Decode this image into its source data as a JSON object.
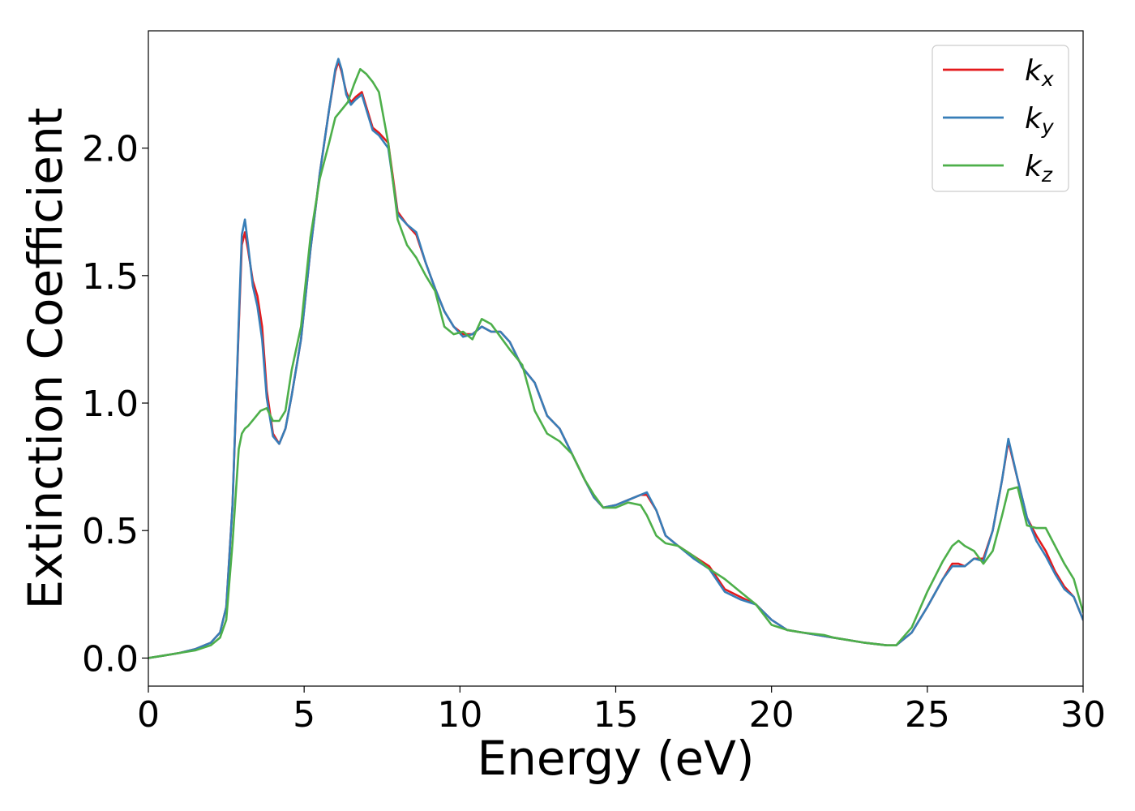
{
  "chart_data": {
    "type": "line",
    "title": "",
    "xlabel": "Energy (eV)",
    "ylabel": "Extinction Coefficient",
    "xlim": [
      0,
      30
    ],
    "ylim": [
      -0.11,
      2.46
    ],
    "xticks": [
      0,
      5,
      10,
      15,
      20,
      25,
      30
    ],
    "xtick_labels": [
      "0",
      "5",
      "10",
      "15",
      "20",
      "25",
      "30"
    ],
    "yticks": [
      0.0,
      0.5,
      1.0,
      1.5,
      2.0
    ],
    "ytick_labels": [
      "0.0",
      "0.5",
      "1.0",
      "1.5",
      "2.0"
    ],
    "grid": false,
    "legend_position": "top-right",
    "series": [
      {
        "name": "k_x",
        "legend_main": "k",
        "legend_sub": "x",
        "color": "#e41a1c",
        "x": [
          0,
          0.5,
          1.0,
          1.5,
          2.0,
          2.3,
          2.5,
          2.7,
          2.9,
          3.0,
          3.1,
          3.2,
          3.35,
          3.5,
          3.65,
          3.8,
          4.0,
          4.2,
          4.4,
          4.6,
          4.9,
          5.2,
          5.5,
          5.8,
          6.0,
          6.1,
          6.2,
          6.35,
          6.5,
          6.65,
          6.85,
          7.0,
          7.2,
          7.4,
          7.7,
          8.0,
          8.3,
          8.6,
          8.9,
          9.2,
          9.5,
          9.8,
          10.1,
          10.4,
          10.7,
          11.0,
          11.3,
          11.6,
          12.0,
          12.4,
          12.8,
          13.2,
          13.6,
          14.0,
          14.3,
          14.6,
          15.0,
          15.4,
          15.8,
          16.0,
          16.3,
          16.6,
          17.0,
          17.5,
          18.0,
          18.5,
          19.0,
          19.5,
          20.0,
          20.5,
          21.0,
          22.0,
          23.0,
          23.7,
          24.0,
          24.5,
          25.0,
          25.5,
          25.8,
          26.0,
          26.2,
          26.5,
          26.8,
          27.1,
          27.4,
          27.6,
          27.9,
          28.2,
          28.5,
          28.8,
          29.1,
          29.4,
          29.7,
          30.0
        ],
        "y": [
          0.0,
          0.01,
          0.02,
          0.035,
          0.06,
          0.1,
          0.2,
          0.6,
          1.3,
          1.62,
          1.67,
          1.6,
          1.48,
          1.42,
          1.3,
          1.05,
          0.88,
          0.84,
          0.9,
          1.03,
          1.25,
          1.6,
          1.9,
          2.15,
          2.3,
          2.34,
          2.3,
          2.22,
          2.18,
          2.2,
          2.22,
          2.16,
          2.08,
          2.06,
          2.02,
          1.75,
          1.7,
          1.66,
          1.55,
          1.45,
          1.36,
          1.3,
          1.27,
          1.27,
          1.3,
          1.28,
          1.28,
          1.24,
          1.14,
          1.08,
          0.95,
          0.9,
          0.8,
          0.7,
          0.63,
          0.59,
          0.6,
          0.62,
          0.64,
          0.64,
          0.58,
          0.48,
          0.44,
          0.4,
          0.36,
          0.27,
          0.24,
          0.21,
          0.15,
          0.11,
          0.1,
          0.08,
          0.06,
          0.05,
          0.05,
          0.1,
          0.2,
          0.31,
          0.37,
          0.37,
          0.36,
          0.39,
          0.39,
          0.5,
          0.7,
          0.85,
          0.7,
          0.55,
          0.48,
          0.42,
          0.34,
          0.28,
          0.24,
          0.15
        ]
      },
      {
        "name": "k_y",
        "legend_main": "k",
        "legend_sub": "y",
        "color": "#377eb8",
        "x": [
          0,
          0.5,
          1.0,
          1.5,
          2.0,
          2.3,
          2.5,
          2.7,
          2.9,
          3.0,
          3.1,
          3.2,
          3.35,
          3.5,
          3.65,
          3.8,
          4.0,
          4.2,
          4.4,
          4.6,
          4.9,
          5.2,
          5.5,
          5.8,
          6.0,
          6.1,
          6.2,
          6.35,
          6.5,
          6.65,
          6.85,
          7.0,
          7.2,
          7.4,
          7.7,
          8.0,
          8.3,
          8.6,
          8.9,
          9.2,
          9.5,
          9.8,
          10.1,
          10.4,
          10.7,
          11.0,
          11.3,
          11.6,
          12.0,
          12.4,
          12.8,
          13.2,
          13.6,
          14.0,
          14.3,
          14.6,
          15.0,
          15.4,
          15.8,
          16.0,
          16.3,
          16.6,
          17.0,
          17.5,
          18.0,
          18.5,
          19.0,
          19.5,
          20.0,
          20.5,
          21.0,
          22.0,
          23.0,
          23.7,
          24.0,
          24.5,
          25.0,
          25.5,
          25.8,
          26.0,
          26.2,
          26.5,
          26.8,
          27.1,
          27.4,
          27.6,
          27.9,
          28.2,
          28.5,
          28.8,
          29.1,
          29.4,
          29.7,
          30.0
        ],
        "y": [
          0.0,
          0.01,
          0.02,
          0.035,
          0.06,
          0.1,
          0.2,
          0.6,
          1.32,
          1.66,
          1.72,
          1.62,
          1.46,
          1.38,
          1.25,
          1.02,
          0.87,
          0.84,
          0.9,
          1.03,
          1.25,
          1.6,
          1.9,
          2.15,
          2.31,
          2.35,
          2.31,
          2.21,
          2.17,
          2.19,
          2.21,
          2.15,
          2.07,
          2.05,
          2.0,
          1.74,
          1.7,
          1.67,
          1.55,
          1.45,
          1.36,
          1.3,
          1.26,
          1.27,
          1.3,
          1.28,
          1.28,
          1.24,
          1.14,
          1.08,
          0.95,
          0.9,
          0.8,
          0.7,
          0.63,
          0.59,
          0.6,
          0.62,
          0.64,
          0.65,
          0.58,
          0.48,
          0.44,
          0.39,
          0.35,
          0.26,
          0.23,
          0.21,
          0.15,
          0.11,
          0.1,
          0.08,
          0.06,
          0.05,
          0.05,
          0.1,
          0.2,
          0.31,
          0.36,
          0.36,
          0.36,
          0.39,
          0.38,
          0.5,
          0.7,
          0.86,
          0.7,
          0.55,
          0.46,
          0.4,
          0.33,
          0.27,
          0.24,
          0.15
        ]
      },
      {
        "name": "k_z",
        "legend_main": "k",
        "legend_sub": "z",
        "color": "#4daf4a",
        "x": [
          0,
          0.5,
          1.0,
          1.5,
          2.0,
          2.3,
          2.5,
          2.7,
          2.9,
          3.0,
          3.1,
          3.2,
          3.4,
          3.6,
          3.8,
          4.0,
          4.2,
          4.4,
          4.6,
          4.9,
          5.2,
          5.5,
          5.8,
          6.0,
          6.2,
          6.4,
          6.6,
          6.8,
          7.0,
          7.2,
          7.4,
          7.7,
          8.0,
          8.3,
          8.6,
          8.9,
          9.2,
          9.5,
          9.8,
          10.1,
          10.4,
          10.7,
          11.0,
          11.3,
          11.6,
          12.0,
          12.4,
          12.8,
          13.2,
          13.6,
          14.0,
          14.3,
          14.6,
          15.0,
          15.4,
          15.8,
          16.0,
          16.3,
          16.6,
          17.0,
          17.5,
          18.0,
          18.5,
          19.0,
          19.5,
          20.0,
          20.5,
          21.0,
          21.7,
          22.0,
          23.0,
          23.7,
          24.0,
          24.5,
          25.0,
          25.5,
          25.8,
          26.0,
          26.2,
          26.5,
          26.8,
          27.1,
          27.4,
          27.6,
          27.9,
          28.2,
          28.5,
          28.8,
          29.1,
          29.4,
          29.7,
          30.0
        ],
        "y": [
          0.0,
          0.01,
          0.02,
          0.03,
          0.05,
          0.08,
          0.15,
          0.45,
          0.82,
          0.88,
          0.9,
          0.91,
          0.94,
          0.97,
          0.98,
          0.93,
          0.93,
          0.97,
          1.13,
          1.3,
          1.65,
          1.88,
          2.02,
          2.12,
          2.15,
          2.18,
          2.25,
          2.31,
          2.29,
          2.26,
          2.22,
          2.02,
          1.72,
          1.62,
          1.57,
          1.5,
          1.44,
          1.3,
          1.27,
          1.28,
          1.25,
          1.33,
          1.31,
          1.26,
          1.21,
          1.15,
          0.97,
          0.88,
          0.85,
          0.8,
          0.7,
          0.64,
          0.59,
          0.59,
          0.61,
          0.6,
          0.56,
          0.48,
          0.45,
          0.44,
          0.4,
          0.35,
          0.31,
          0.26,
          0.21,
          0.13,
          0.11,
          0.1,
          0.09,
          0.08,
          0.06,
          0.05,
          0.05,
          0.12,
          0.26,
          0.38,
          0.44,
          0.46,
          0.44,
          0.42,
          0.37,
          0.42,
          0.56,
          0.66,
          0.67,
          0.52,
          0.51,
          0.51,
          0.44,
          0.37,
          0.31,
          0.18
        ]
      }
    ]
  }
}
